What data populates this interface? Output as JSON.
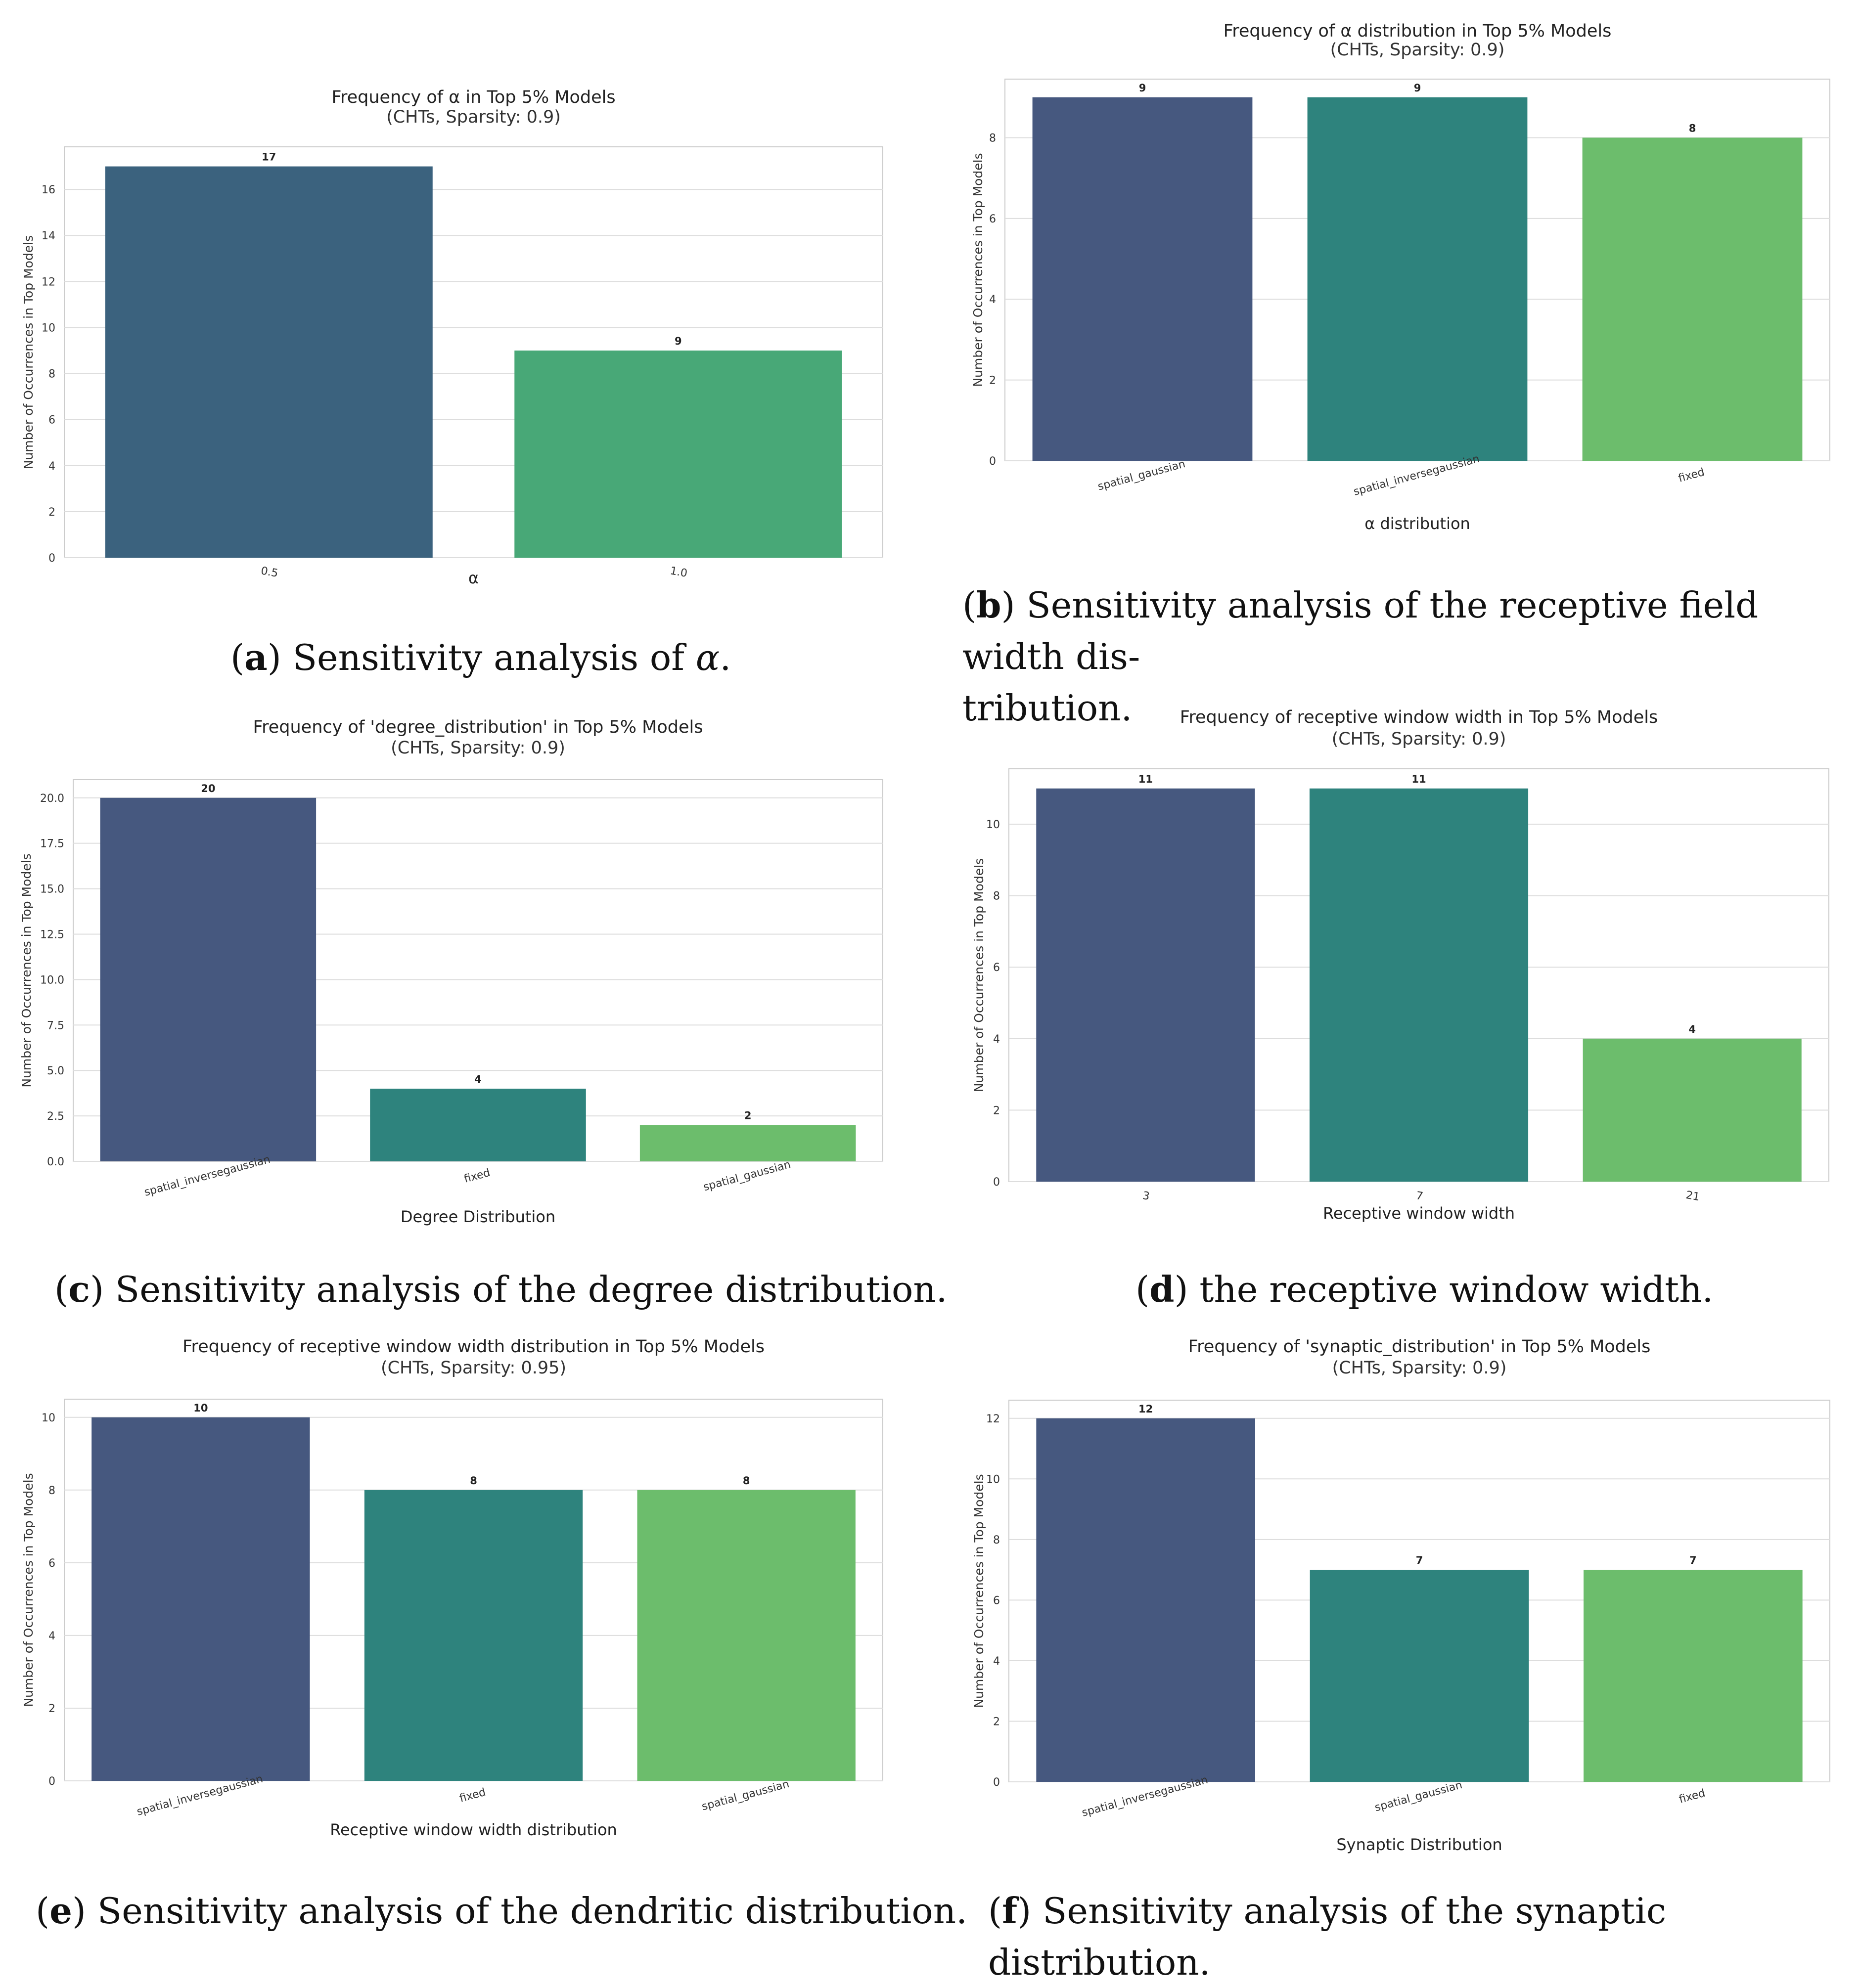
{
  "chart_data": [
    {
      "id": "a",
      "type": "bar",
      "title": "Frequency of α in Top 5% Models",
      "subtitle": "(CHTs, Sparsity: 0.9)",
      "xlabel": "α",
      "ylabel": "Number of Occurrences in Top Models",
      "categories": [
        "0.5",
        "1.0"
      ],
      "values": [
        17,
        9
      ],
      "value_labels": [
        "17",
        "9"
      ],
      "colors": [
        "#3b627e",
        "#48a877"
      ],
      "ylim": [
        0,
        17.85
      ],
      "yticks": [
        0,
        2,
        4,
        6,
        8,
        10,
        12,
        14,
        16
      ],
      "ytick_labels": [
        "0",
        "2",
        "4",
        "6",
        "8",
        "10",
        "12",
        "14",
        "16"
      ],
      "grid": true,
      "legend": "none",
      "caption": {
        "tag": "a",
        "before": "Sensitivity analysis of ",
        "math": "α",
        "after": "."
      }
    },
    {
      "id": "b",
      "type": "bar",
      "title": "Frequency of α distribution in Top 5% Models",
      "subtitle": "(CHTs, Sparsity: 0.9)",
      "xlabel": "α distribution",
      "ylabel": "Number of Occurrences in Top Models",
      "categories": [
        "spatial_gaussian",
        "spatial_inversegaussian",
        "fixed"
      ],
      "values": [
        9,
        9,
        8
      ],
      "value_labels": [
        "9",
        "9",
        "8"
      ],
      "colors": [
        "#46587f",
        "#2e837d",
        "#6cbd6c"
      ],
      "ylim": [
        0,
        9.45
      ],
      "yticks": [
        0,
        2,
        4,
        6,
        8
      ],
      "ytick_labels": [
        "0",
        "2",
        "4",
        "6",
        "8"
      ],
      "grid": true,
      "legend": "none",
      "caption": {
        "tag": "b",
        "lines": [
          "Sensitivity analysis of the receptive field width dis-",
          "tribution."
        ]
      }
    },
    {
      "id": "c",
      "type": "bar",
      "title": "Frequency of 'degree_distribution' in Top 5% Models",
      "subtitle": "(CHTs, Sparsity: 0.9)",
      "xlabel": "Degree Distribution",
      "ylabel": "Number of Occurrences in Top Models",
      "categories": [
        "spatial_inversegaussian",
        "fixed",
        "spatial_gaussian"
      ],
      "values": [
        20,
        4,
        2
      ],
      "value_labels": [
        "20",
        "4",
        "2"
      ],
      "colors": [
        "#46587f",
        "#2e837d",
        "#6cbd6c"
      ],
      "ylim": [
        0,
        21
      ],
      "yticks": [
        0,
        2.5,
        5,
        7.5,
        10,
        12.5,
        15,
        17.5,
        20
      ],
      "ytick_labels": [
        "0.0",
        "2.5",
        "5.0",
        "7.5",
        "10.0",
        "12.5",
        "15.0",
        "17.5",
        "20.0"
      ],
      "grid": true,
      "legend": "none",
      "caption": {
        "tag": "c",
        "lines": [
          "Sensitivity analysis of the degree distribution."
        ]
      }
    },
    {
      "id": "d",
      "type": "bar",
      "title": "Frequency of receptive window width in Top 5% Models",
      "subtitle": "(CHTs, Sparsity: 0.9)",
      "xlabel": "Receptive window width",
      "ylabel": "Number of Occurrences in Top Models",
      "categories": [
        "3",
        "7",
        "21"
      ],
      "values": [
        11,
        11,
        4
      ],
      "value_labels": [
        "11",
        "11",
        "4"
      ],
      "colors": [
        "#46587f",
        "#2e837d",
        "#6cbd6c"
      ],
      "ylim": [
        0,
        11.55
      ],
      "yticks": [
        0,
        2,
        4,
        6,
        8,
        10
      ],
      "ytick_labels": [
        "0",
        "2",
        "4",
        "6",
        "8",
        "10"
      ],
      "grid": true,
      "legend": "none",
      "caption": {
        "tag": "d",
        "lines": [
          "the receptive window width."
        ]
      }
    },
    {
      "id": "e",
      "type": "bar",
      "title": "Frequency of receptive window width distribution in Top 5% Models",
      "subtitle": "(CHTs, Sparsity: 0.95)",
      "xlabel": "Receptive window width distribution",
      "ylabel": "Number of Occurrences in Top Models",
      "categories": [
        "spatial_inversegaussian",
        "fixed",
        "spatial_gaussian"
      ],
      "values": [
        10,
        8,
        8
      ],
      "value_labels": [
        "10",
        "8",
        "8"
      ],
      "colors": [
        "#46587f",
        "#2e837d",
        "#6cbd6c"
      ],
      "ylim": [
        0,
        10.5
      ],
      "yticks": [
        0,
        2,
        4,
        6,
        8,
        10
      ],
      "ytick_labels": [
        "0",
        "2",
        "4",
        "6",
        "8",
        "10"
      ],
      "grid": true,
      "legend": "none",
      "caption": {
        "tag": "e",
        "lines": [
          "Sensitivity analysis of the dendritic distribution."
        ]
      }
    },
    {
      "id": "f",
      "type": "bar",
      "title": "Frequency of 'synaptic_distribution' in Top 5% Models",
      "subtitle": "(CHTs, Sparsity: 0.9)",
      "xlabel": "Synaptic Distribution",
      "ylabel": "Number of Occurrences in Top Models",
      "categories": [
        "spatial_inversegaussian",
        "spatial_gaussian",
        "fixed"
      ],
      "values": [
        12,
        7,
        7
      ],
      "value_labels": [
        "12",
        "7",
        "7"
      ],
      "colors": [
        "#46587f",
        "#2e837d",
        "#6cbd6c"
      ],
      "ylim": [
        0,
        12.6
      ],
      "yticks": [
        0,
        2,
        4,
        6,
        8,
        10,
        12
      ],
      "ytick_labels": [
        "0",
        "2",
        "4",
        "6",
        "8",
        "10",
        "12"
      ],
      "grid": true,
      "legend": "none",
      "caption": {
        "tag": "f",
        "lines": [
          "Sensitivity analysis of the synaptic distribution."
        ]
      }
    }
  ]
}
